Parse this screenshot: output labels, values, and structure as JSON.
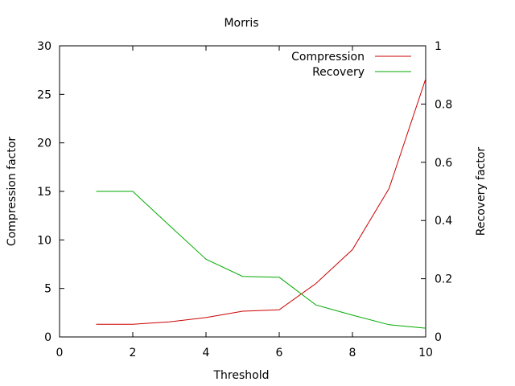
{
  "chart_data": {
    "type": "line",
    "title": "Morris",
    "xlabel": "Threshold",
    "ylabel": "Compression factor",
    "y2label": "Recovery factor",
    "xlim": [
      0,
      10
    ],
    "ylim": [
      0,
      30
    ],
    "y2lim": [
      0,
      1
    ],
    "xticks": [
      0,
      2,
      4,
      6,
      8,
      10
    ],
    "yticks": [
      0,
      5,
      10,
      15,
      20,
      25,
      30
    ],
    "y2ticks": [
      0,
      0.2,
      0.4,
      0.6,
      0.8,
      1
    ],
    "grid": false,
    "legend": "top-right",
    "x": [
      1,
      2,
      3,
      4,
      5,
      6,
      7,
      8,
      9,
      10
    ],
    "series": [
      {
        "name": "Compression",
        "axis": "left",
        "color": "#cc0000",
        "values": [
          1.3,
          1.3,
          1.55,
          2.0,
          2.65,
          2.8,
          5.5,
          9.0,
          15.3,
          26.6
        ]
      },
      {
        "name": "Recovery",
        "axis": "right",
        "color": "#00aa00",
        "values": [
          0.5,
          0.5,
          0.383,
          0.267,
          0.208,
          0.205,
          0.11,
          0.075,
          0.042,
          0.03
        ]
      }
    ]
  }
}
